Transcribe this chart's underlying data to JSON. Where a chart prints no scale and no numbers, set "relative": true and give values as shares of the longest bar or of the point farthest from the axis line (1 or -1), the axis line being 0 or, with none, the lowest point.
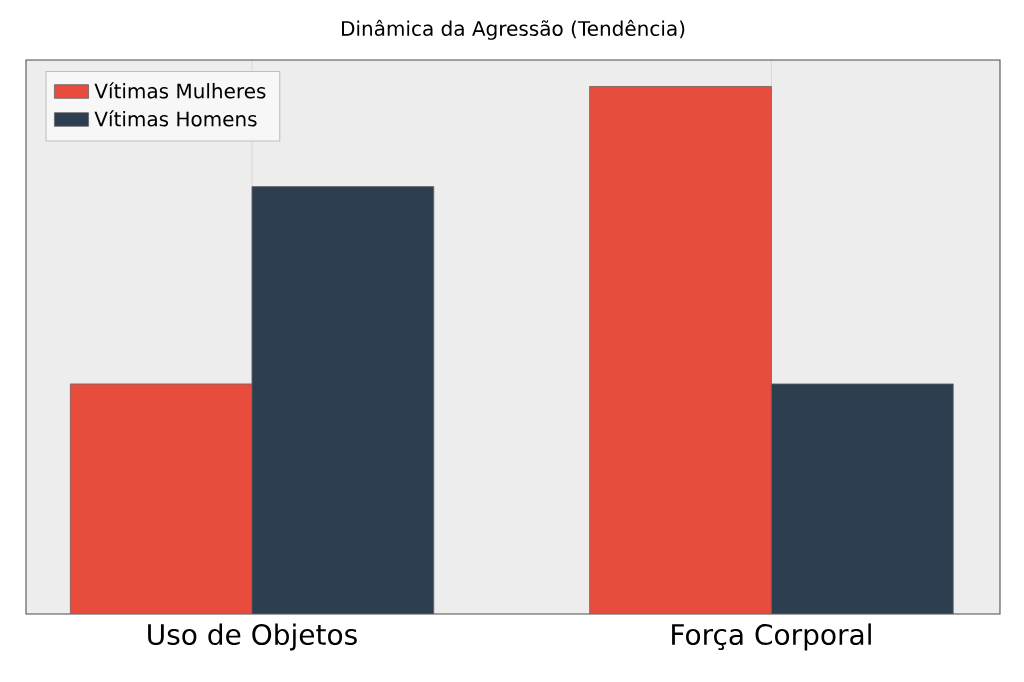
{
  "chart_data": {
    "type": "bar",
    "title": "Dinâmica da Agressão (Tendência)",
    "categories": [
      "Uso de Objetos",
      "Força Corporal"
    ],
    "relative": true,
    "grid": "x",
    "legend": "top left",
    "tick_labels": "x",
    "series": [
      {
        "name": "Vítimas Mulheres",
        "color": "#e74c3c",
        "values": [
          0.436,
          1
        ]
      },
      {
        "name": "Vítimas Homens",
        "color": "#2c3e50",
        "values": [
          0.81,
          0.436
        ]
      }
    ]
  }
}
